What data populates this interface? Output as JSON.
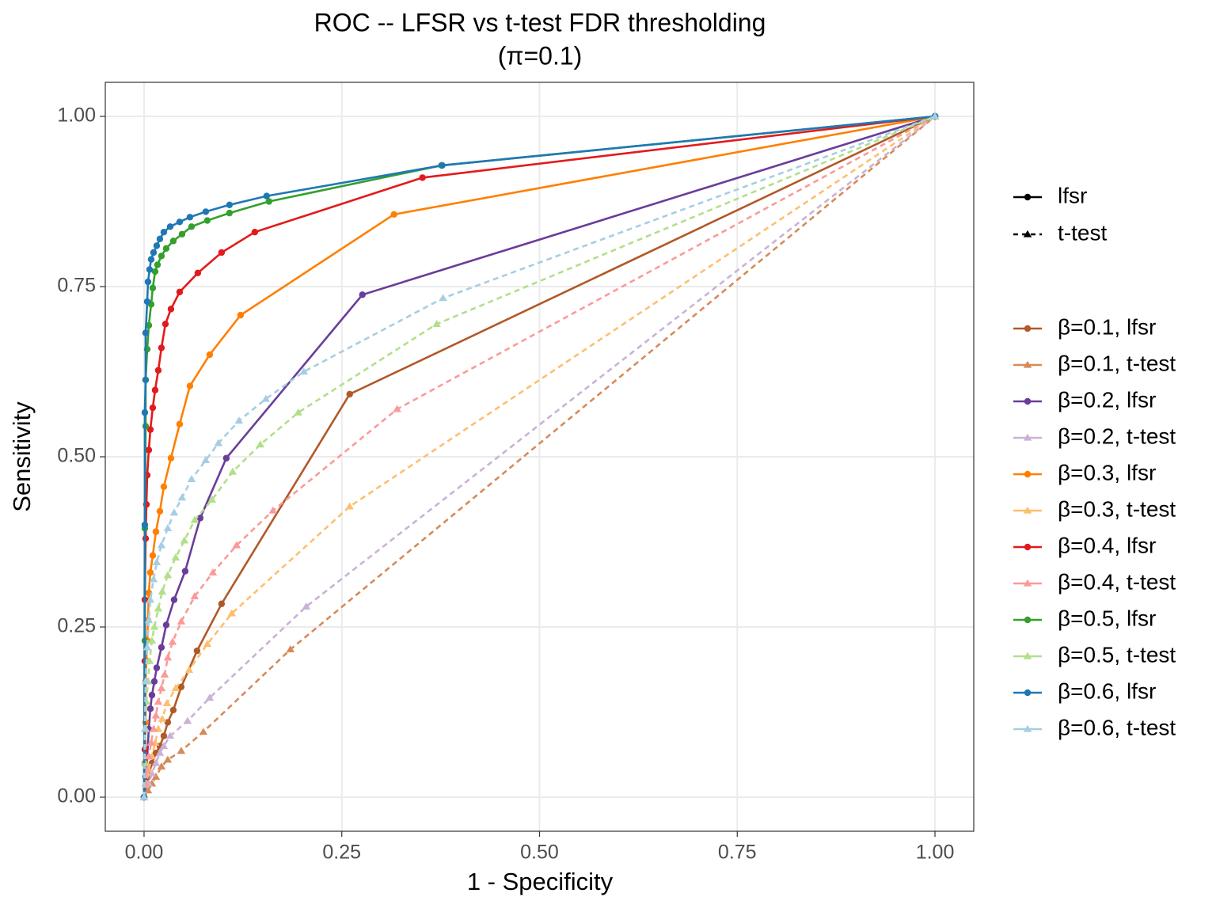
{
  "chart_data": {
    "type": "line",
    "title": "ROC -- LFSR vs t-test FDR thresholding",
    "subtitle": "(π=0.1)",
    "x_label": "1 - Specificity",
    "y_label": "Sensitivity",
    "xlim": [
      -0.049,
      1.049
    ],
    "ylim": [
      -0.05,
      1.05
    ],
    "xticks": [
      {
        "value": 0,
        "label": "0.00"
      },
      {
        "value": 0.25,
        "label": "0.25"
      },
      {
        "value": 0.5,
        "label": "0.50"
      },
      {
        "value": 0.75,
        "label": "0.75"
      },
      {
        "value": 1,
        "label": "1.00"
      }
    ],
    "yticks": [
      {
        "value": 0,
        "label": "0.00"
      },
      {
        "value": 0.25,
        "label": "0.25"
      },
      {
        "value": 0.5,
        "label": "0.50"
      },
      {
        "value": 0.75,
        "label": "0.75"
      },
      {
        "value": 1,
        "label": "1.00"
      }
    ],
    "grid": true,
    "method_legend": [
      {
        "label": "lfsr",
        "dashed": false,
        "marker": "circle"
      },
      {
        "label": "t-test",
        "dashed": true,
        "marker": "triangle"
      }
    ],
    "series": [
      {
        "name": "β=0.1, lfsr",
        "color": "#b15928",
        "dashed": false,
        "marker": "circle",
        "x": [
          0,
          0.005,
          0.01,
          0.015,
          0.02,
          0.025,
          0.03,
          0.037,
          0.047,
          0.067,
          0.098,
          0.26,
          1
        ],
        "values": [
          0,
          0.03,
          0.05,
          0.065,
          0.075,
          0.09,
          0.11,
          0.128,
          0.162,
          0.215,
          0.284,
          0.592,
          1
        ]
      },
      {
        "name": "β=0.1, t-test",
        "color": "#d68a5a",
        "dashed": true,
        "marker": "triangle",
        "x": [
          0,
          0.005,
          0.01,
          0.015,
          0.022,
          0.03,
          0.047,
          0.075,
          0.185,
          1
        ],
        "values": [
          0,
          0.01,
          0.02,
          0.03,
          0.045,
          0.055,
          0.068,
          0.096,
          0.217,
          1
        ]
      },
      {
        "name": "β=0.2, lfsr",
        "color": "#6a3d9a",
        "dashed": false,
        "marker": "circle",
        "x": [
          0,
          0.002,
          0.004,
          0.006,
          0.008,
          0.01,
          0.013,
          0.016,
          0.022,
          0.028,
          0.038,
          0.052,
          0.071,
          0.104,
          0.276,
          1
        ],
        "values": [
          0,
          0.03,
          0.06,
          0.1,
          0.13,
          0.15,
          0.17,
          0.19,
          0.22,
          0.253,
          0.29,
          0.332,
          0.41,
          0.498,
          0.738,
          1
        ]
      },
      {
        "name": "β=0.2, t-test",
        "color": "#cab2d6",
        "dashed": true,
        "marker": "triangle",
        "x": [
          0,
          0.006,
          0.01,
          0.015,
          0.02,
          0.025,
          0.033,
          0.055,
          0.083,
          0.205,
          1
        ],
        "values": [
          0,
          0.02,
          0.035,
          0.05,
          0.065,
          0.075,
          0.09,
          0.112,
          0.146,
          0.28,
          1
        ]
      },
      {
        "name": "β=0.3, lfsr",
        "color": "#ff7f00",
        "dashed": false,
        "marker": "circle",
        "x": [
          0,
          0.001,
          0.002,
          0.002,
          0.003,
          0.004,
          0.005,
          0.006,
          0.008,
          0.011,
          0.015,
          0.02,
          0.025,
          0.034,
          0.045,
          0.058,
          0.083,
          0.122,
          0.316,
          1
        ],
        "values": [
          0,
          0.05,
          0.11,
          0.17,
          0.2,
          0.23,
          0.26,
          0.3,
          0.33,
          0.355,
          0.39,
          0.42,
          0.456,
          0.498,
          0.548,
          0.604,
          0.65,
          0.708,
          0.856,
          1
        ]
      },
      {
        "name": "β=0.3, t-test",
        "color": "#fdbf6f",
        "dashed": true,
        "marker": "triangle",
        "x": [
          0,
          0.003,
          0.006,
          0.01,
          0.014,
          0.018,
          0.023,
          0.029,
          0.04,
          0.057,
          0.08,
          0.111,
          0.26,
          1
        ],
        "values": [
          0,
          0.02,
          0.04,
          0.06,
          0.08,
          0.1,
          0.115,
          0.138,
          0.16,
          0.187,
          0.225,
          0.27,
          0.427,
          1
        ]
      },
      {
        "name": "β=0.4, lfsr",
        "color": "#e31a1c",
        "dashed": false,
        "marker": "circle",
        "x": [
          0,
          0.001,
          0.001,
          0.001,
          0.002,
          0.003,
          0.004,
          0.006,
          0.008,
          0.011,
          0.014,
          0.018,
          0.022,
          0.027,
          0.034,
          0.045,
          0.068,
          0.098,
          0.14,
          0.352,
          1
        ],
        "values": [
          0,
          0.07,
          0.2,
          0.29,
          0.38,
          0.43,
          0.473,
          0.51,
          0.54,
          0.572,
          0.598,
          0.627,
          0.66,
          0.695,
          0.717,
          0.742,
          0.77,
          0.8,
          0.83,
          0.91,
          1
        ]
      },
      {
        "name": "β=0.4, t-test",
        "color": "#fb9a99",
        "dashed": true,
        "marker": "triangle",
        "x": [
          0,
          0.002,
          0.004,
          0.006,
          0.009,
          0.012,
          0.015,
          0.018,
          0.022,
          0.026,
          0.03,
          0.036,
          0.047,
          0.064,
          0.087,
          0.117,
          0.163,
          0.32,
          1
        ],
        "values": [
          0,
          0.02,
          0.04,
          0.06,
          0.08,
          0.1,
          0.12,
          0.14,
          0.16,
          0.18,
          0.205,
          0.228,
          0.258,
          0.295,
          0.33,
          0.37,
          0.421,
          0.57,
          1
        ]
      },
      {
        "name": "β=0.5, lfsr",
        "color": "#33a02c",
        "dashed": false,
        "marker": "circle",
        "x": [
          0,
          0.001,
          0.001,
          0.002,
          0.002,
          0.004,
          0.006,
          0.009,
          0.011,
          0.014,
          0.017,
          0.022,
          0.028,
          0.037,
          0.048,
          0.06,
          0.08,
          0.108,
          0.158,
          0.376,
          1
        ],
        "values": [
          0,
          0.23,
          0.395,
          0.545,
          0.613,
          0.658,
          0.693,
          0.724,
          0.748,
          0.772,
          0.782,
          0.795,
          0.806,
          0.817,
          0.827,
          0.838,
          0.847,
          0.858,
          0.875,
          0.928,
          1
        ]
      },
      {
        "name": "β=0.5, t-test",
        "color": "#b2df8a",
        "dashed": true,
        "marker": "triangle",
        "x": [
          0,
          0.001,
          0.002,
          0.003,
          0.005,
          0.007,
          0.01,
          0.013,
          0.018,
          0.023,
          0.03,
          0.04,
          0.051,
          0.064,
          0.086,
          0.112,
          0.147,
          0.195,
          0.37,
          1
        ],
        "values": [
          0,
          0.05,
          0.1,
          0.14,
          0.17,
          0.2,
          0.23,
          0.25,
          0.277,
          0.302,
          0.326,
          0.352,
          0.377,
          0.407,
          0.437,
          0.478,
          0.518,
          0.565,
          0.695,
          1
        ]
      },
      {
        "name": "β=0.6, lfsr",
        "color": "#1f78b4",
        "dashed": false,
        "marker": "circle",
        "x": [
          0,
          0.001,
          0.001,
          0.002,
          0.002,
          0.004,
          0.005,
          0.007,
          0.009,
          0.012,
          0.016,
          0.02,
          0.025,
          0.033,
          0.045,
          0.058,
          0.078,
          0.108,
          0.155,
          0.377,
          1
        ],
        "values": [
          0,
          0.4,
          0.565,
          0.613,
          0.682,
          0.728,
          0.757,
          0.775,
          0.79,
          0.8,
          0.81,
          0.82,
          0.83,
          0.838,
          0.845,
          0.852,
          0.86,
          0.87,
          0.883,
          0.928,
          1
        ]
      },
      {
        "name": "β=0.6, t-test",
        "color": "#a6cee3",
        "dashed": true,
        "marker": "triangle",
        "x": [
          0,
          0.001,
          0.002,
          0.004,
          0.006,
          0.008,
          0.012,
          0.016,
          0.022,
          0.03,
          0.038,
          0.048,
          0.06,
          0.078,
          0.094,
          0.12,
          0.154,
          0.202,
          0.378,
          1
        ],
        "values": [
          0,
          0.1,
          0.17,
          0.22,
          0.26,
          0.29,
          0.32,
          0.345,
          0.37,
          0.395,
          0.418,
          0.44,
          0.467,
          0.495,
          0.52,
          0.553,
          0.585,
          0.625,
          0.733,
          1
        ]
      }
    ]
  }
}
